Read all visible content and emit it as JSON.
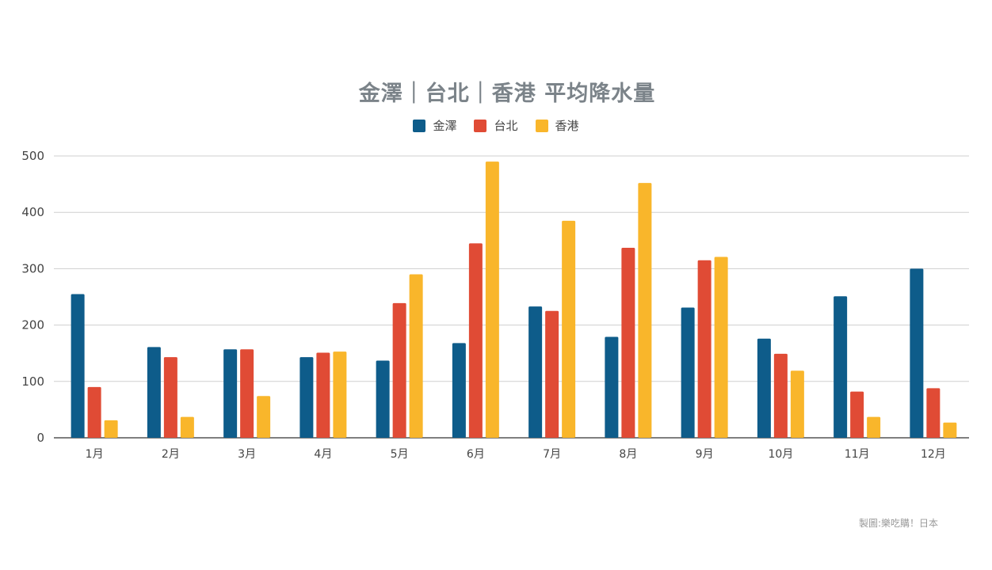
{
  "chart_data": {
    "type": "bar",
    "title": "金澤｜台北｜香港 平均降水量",
    "categories": [
      "1月",
      "2月",
      "3月",
      "4月",
      "5月",
      "6月",
      "7月",
      "8月",
      "9月",
      "10月",
      "11月",
      "12月"
    ],
    "series": [
      {
        "name": "金澤",
        "color": "#0e5c8a",
        "values": [
          255,
          161,
          157,
          143,
          137,
          168,
          233,
          179,
          231,
          176,
          251,
          300
        ]
      },
      {
        "name": "台北",
        "color": "#e04b35",
        "values": [
          90,
          143,
          157,
          151,
          239,
          345,
          225,
          337,
          315,
          149,
          82,
          88
        ]
      },
      {
        "name": "香港",
        "color": "#f9b62b",
        "values": [
          31,
          37,
          74,
          153,
          290,
          490,
          385,
          452,
          321,
          119,
          37,
          27
        ]
      }
    ],
    "ylim": [
      0,
      500
    ],
    "yticks": [
      "0",
      "100",
      "200",
      "300",
      "400",
      "500"
    ],
    "xlabel": "",
    "ylabel": "",
    "grid": true,
    "legend_position": "top-center"
  },
  "credit": "製圖:樂吃購！日本"
}
